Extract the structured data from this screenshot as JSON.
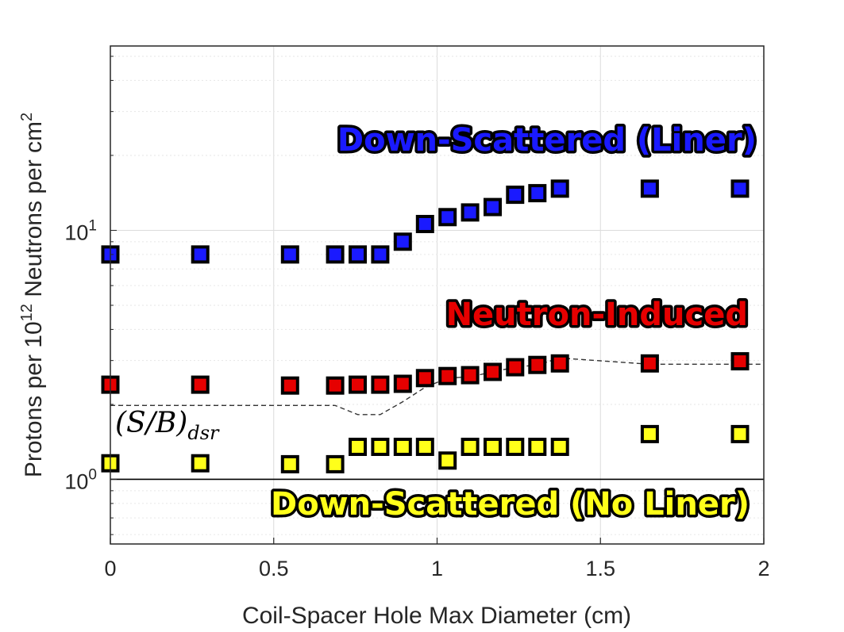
{
  "chart_data": {
    "type": "scatter",
    "xlabel": "Coil-Spacer Hole Max Diameter (cm)",
    "ylabel": "Protons per 10^12 Neutrons per cm^2",
    "ylabel_parts": {
      "pre": "Protons per 10",
      "sup1": "12",
      "mid": " Neutrons per cm",
      "sup2": "2"
    },
    "xlim": [
      0,
      2
    ],
    "ylim": [
      0.55,
      55
    ],
    "yscale": "log",
    "grid": true,
    "x_ticks": [
      "0",
      "0.5",
      "1",
      "1.5",
      "2"
    ],
    "y_ticks": [
      {
        "value": 1,
        "base": "10",
        "exp": "0"
      },
      {
        "value": 10,
        "base": "10",
        "exp": "1"
      }
    ],
    "series": [
      {
        "name": "Down-Scattered (Liner)",
        "color": "#1a1aff",
        "x": [
          0,
          0.275,
          0.55,
          0.688,
          0.757,
          0.826,
          0.895,
          0.963,
          1.032,
          1.101,
          1.17,
          1.239,
          1.307,
          1.376,
          1.651,
          1.927
        ],
        "y": [
          8.0,
          8.0,
          8.0,
          8.0,
          8.0,
          8.0,
          9.0,
          10.6,
          11.3,
          11.8,
          12.4,
          13.9,
          14.1,
          14.7,
          14.7,
          14.7
        ]
      },
      {
        "name": "Neutron-Induced",
        "color": "#e60000",
        "x": [
          0,
          0.275,
          0.55,
          0.688,
          0.757,
          0.826,
          0.895,
          0.963,
          1.032,
          1.101,
          1.17,
          1.239,
          1.307,
          1.376,
          1.651,
          1.927
        ],
        "y": [
          2.4,
          2.4,
          2.38,
          2.38,
          2.4,
          2.4,
          2.42,
          2.55,
          2.6,
          2.62,
          2.7,
          2.82,
          2.88,
          2.92,
          2.92,
          2.98
        ]
      },
      {
        "name": "Down-Scattered (No Liner)",
        "color": "#ffff1a",
        "x": [
          0,
          0.275,
          0.55,
          0.688,
          0.757,
          0.826,
          0.895,
          0.963,
          1.032,
          1.101,
          1.17,
          1.239,
          1.307,
          1.376,
          1.651,
          1.927
        ],
        "y": [
          1.16,
          1.16,
          1.15,
          1.15,
          1.35,
          1.35,
          1.35,
          1.35,
          1.19,
          1.35,
          1.35,
          1.35,
          1.35,
          1.35,
          1.52,
          1.52
        ]
      }
    ],
    "ratio_line": {
      "label_tex": "(S/B)_dsr",
      "label_main": "(S/B)",
      "label_sub": "dsr",
      "x": [
        0,
        0.688,
        0.757,
        0.826,
        0.895,
        0.963,
        1.032,
        1.101,
        1.17,
        1.239,
        1.307,
        1.376,
        1.651,
        1.927,
        2.0
      ],
      "y": [
        1.98,
        1.98,
        1.82,
        1.82,
        2.05,
        2.34,
        2.55,
        2.58,
        2.7,
        2.82,
        2.88,
        3.07,
        2.9,
        2.9,
        2.9
      ]
    },
    "reference_line": {
      "y": 1.0
    }
  }
}
